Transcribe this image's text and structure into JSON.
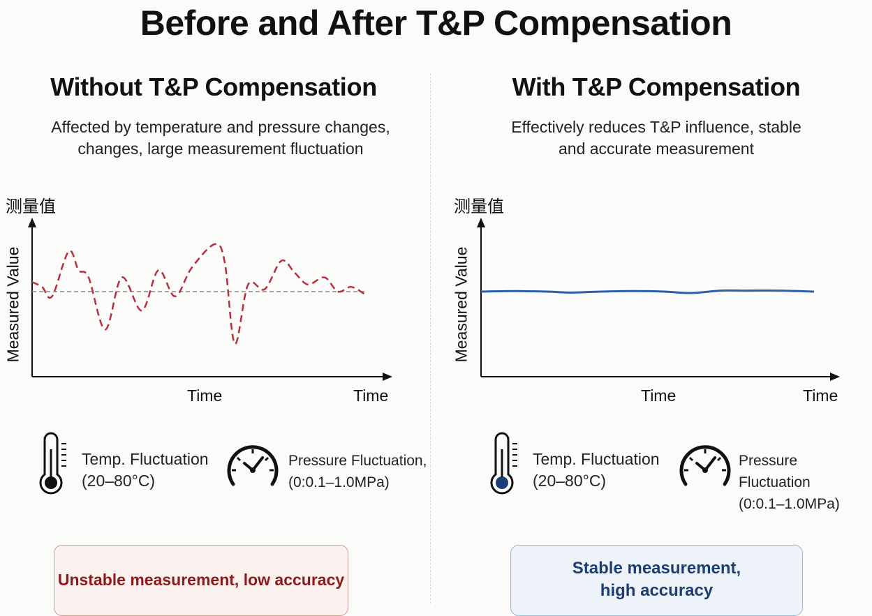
{
  "title": "Before and After T&P Compensation",
  "panels": [
    {
      "heading": "Without T&P Compensation",
      "description": [
        "Affected by temperature and pressure changes,",
        "changes, large measurement fluctuation"
      ],
      "cjk_label": "测量值",
      "y_axis_label": "Measured Value",
      "time_labels": [
        "Time",
        "Time"
      ],
      "temp_label": [
        "Temp. Fluctuation",
        "(20–80°C)"
      ],
      "pressure_label": [
        "Pressure Fluctuation,",
        "(0:0.1–1.0MPa)"
      ],
      "result_text": "Unstable measurement, low accuracy"
    },
    {
      "heading": "With T&P Compensation",
      "description": [
        "Effectively reduces T&P influence, stable",
        "and accurate measurement"
      ],
      "cjk_label": "测量值",
      "y_axis_label": "Measured Value",
      "time_labels": [
        "Time",
        "Time"
      ],
      "temp_label": [
        "Temp. Fluctuation",
        "(20–80°C)"
      ],
      "pressure_label": [
        "Pressure Fluctuation",
        "(0:0.1–1.0MPa)"
      ],
      "result_text": [
        "Stable measurement,",
        "high accuracy"
      ]
    }
  ],
  "colors": {
    "unstable_line": "#b5303a",
    "stable_line": "#2c5fa8",
    "reference_line": "#8a8a8a",
    "axis": "#111111",
    "temp_bulb_left": "#111111",
    "temp_bulb_right": "#1d3e74"
  },
  "icons": [
    "thermometer-icon",
    "pressure-gauge-icon"
  ],
  "chart_data": [
    {
      "type": "line",
      "title": "Without T&P Compensation",
      "xlabel": "Time",
      "ylabel": "Measured Value",
      "reference_value": 0,
      "series": [
        {
          "style": "dashed",
          "x": [
            0.0,
            0.03,
            0.06,
            0.11,
            0.14,
            0.17,
            0.22,
            0.27,
            0.33,
            0.38,
            0.43,
            0.48,
            0.55,
            0.58,
            0.61,
            0.65,
            0.7,
            0.75,
            0.79,
            0.83,
            0.88,
            0.92,
            0.96,
            1.0
          ],
          "y": [
            0.2,
            0.1,
            -0.1,
            0.85,
            0.45,
            0.3,
            -0.8,
            0.3,
            -0.4,
            0.45,
            -0.1,
            0.5,
            1.0,
            0.6,
            -1.1,
            0.15,
            0.05,
            0.65,
            0.4,
            0.15,
            0.3,
            0.0,
            0.1,
            -0.05
          ]
        }
      ]
    },
    {
      "type": "line",
      "title": "With T&P Compensation",
      "xlabel": "Time",
      "ylabel": "Measured Value",
      "series": [
        {
          "style": "solid",
          "x": [
            0.0,
            0.1,
            0.2,
            0.27,
            0.36,
            0.45,
            0.55,
            0.63,
            0.72,
            0.8,
            0.9,
            1.0
          ],
          "y": [
            0.0,
            0.01,
            0.0,
            -0.02,
            0.0,
            0.01,
            0.0,
            -0.03,
            0.02,
            0.02,
            0.02,
            0.0
          ]
        }
      ]
    }
  ]
}
